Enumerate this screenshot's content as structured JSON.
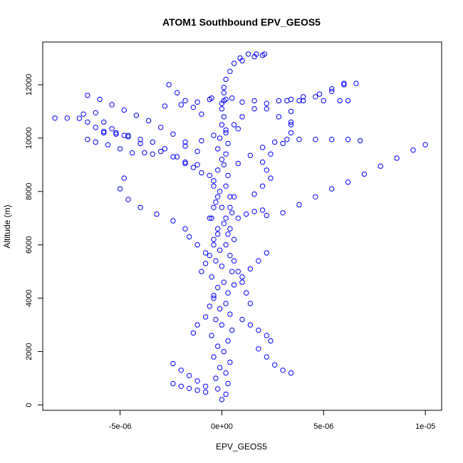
{
  "chart_data": {
    "type": "scatter",
    "title": "ATOM1 Southbound EPV_GEOS5",
    "xlabel": "EPV_GEOS5",
    "ylabel": "Altitude (m)",
    "xlim": [
      -8.8e-06,
      1.08e-05
    ],
    "ylim": [
      -200,
      13600
    ],
    "xticks": [
      -5e-06,
      0,
      5e-06,
      1e-05
    ],
    "xtick_labels": [
      "-5e-06",
      "0e+00",
      "5e-06",
      "1e-05"
    ],
    "yticks": [
      0,
      2000,
      4000,
      6000,
      8000,
      10000,
      12000
    ],
    "ytick_labels": [
      "0",
      "2000",
      "4000",
      "6000",
      "8000",
      "10000",
      "12000"
    ],
    "marker": "open-circle",
    "point_color": "#0000ff",
    "grid": false,
    "series": [
      {
        "values": [
          [
            -8.2e-06,
            10750
          ],
          [
            -7.6e-06,
            10750
          ],
          [
            -7e-06,
            10740
          ],
          [
            -6.6e-06,
            10600
          ],
          [
            -6.2e-06,
            10400
          ],
          [
            -5.8e-06,
            10250
          ],
          [
            -5.2e-06,
            10150
          ],
          [
            -4.6e-06,
            10050
          ],
          [
            -4e-06,
            9950
          ],
          [
            -3.4e-06,
            9850
          ],
          [
            -2.8e-06,
            9600
          ],
          [
            -2.2e-06,
            9300
          ],
          [
            -1.8e-06,
            9050
          ],
          [
            -1.4e-06,
            8900
          ],
          [
            -1e-06,
            8700
          ],
          [
            -6.8e-06,
            10900
          ],
          [
            -6.2e-06,
            10950
          ],
          [
            -5.8e-06,
            10600
          ],
          [
            -5.4e-06,
            10350
          ],
          [
            -4.8e-06,
            10100
          ],
          [
            -6.6e-06,
            9950
          ],
          [
            -6.2e-06,
            9850
          ],
          [
            -5.6e-06,
            9750
          ],
          [
            -5e-06,
            9600
          ],
          [
            -4.4e-06,
            9450
          ],
          [
            -3.8e-06,
            9450
          ],
          [
            -3e-06,
            9500
          ],
          [
            -2.4e-06,
            9300
          ],
          [
            -1.8e-06,
            9100
          ],
          [
            -1.2e-06,
            9000
          ],
          [
            -6.6e-06,
            11600
          ],
          [
            -6e-06,
            11450
          ],
          [
            -5.4e-06,
            11250
          ],
          [
            -4.8e-06,
            11050
          ],
          [
            -4.2e-06,
            10850
          ],
          [
            -3.6e-06,
            10650
          ],
          [
            -3e-06,
            10400
          ],
          [
            -2.4e-06,
            10150
          ],
          [
            -1.8e-06,
            9850
          ],
          [
            -1.2e-06,
            9500
          ],
          [
            -5.8e-06,
            10200
          ],
          [
            -5.2e-06,
            10200
          ],
          [
            -4.6e-06,
            10100
          ],
          [
            -4e-06,
            9800
          ],
          [
            -3.4e-06,
            9400
          ],
          [
            -2.6e-06,
            12000
          ],
          [
            -2.2e-06,
            11700
          ],
          [
            -1.8e-06,
            11400
          ],
          [
            -1.4e-06,
            11150
          ],
          [
            -1e-06,
            10900
          ],
          [
            -2.8e-06,
            11200
          ],
          [
            -2e-06,
            11250
          ],
          [
            -1.2e-06,
            11350
          ],
          [
            -6e-07,
            11450
          ],
          [
            2e-07,
            11450
          ],
          [
            1e-06,
            11350
          ],
          [
            1.6e-06,
            11400
          ],
          [
            2.2e-06,
            11100
          ],
          [
            2.8e-06,
            10800
          ],
          [
            3.4e-06,
            10500
          ],
          [
            2e-07,
            12200
          ],
          [
            4e-07,
            12500
          ],
          [
            6e-07,
            12800
          ],
          [
            9e-07,
            13000
          ],
          [
            1.3e-06,
            13150
          ],
          [
            1.7e-06,
            13150
          ],
          [
            2.1e-06,
            13150
          ],
          [
            2e-06,
            13100
          ],
          [
            1.6e-06,
            13050
          ],
          [
            1e-06,
            12900
          ],
          [
            6e-06,
            12050
          ],
          [
            5.4e-06,
            11850
          ],
          [
            4.8e-06,
            11650
          ],
          [
            4e-06,
            11550
          ],
          [
            3.4e-06,
            11450
          ],
          [
            2.8e-06,
            11400
          ],
          [
            2.2e-06,
            11300
          ],
          [
            1.6e-06,
            11100
          ],
          [
            1e-06,
            10800
          ],
          [
            6e-07,
            10500
          ],
          [
            6.6e-06,
            12050
          ],
          [
            6e-06,
            12000
          ],
          [
            5.4e-06,
            11750
          ],
          [
            4.6e-06,
            11550
          ],
          [
            3.8e-06,
            11400
          ],
          [
            3.2e-06,
            11400
          ],
          [
            4e-06,
            11400
          ],
          [
            5e-06,
            11400
          ],
          [
            5.8e-06,
            11400
          ],
          [
            6.2e-06,
            11400
          ],
          [
            1e-05,
            9750
          ],
          [
            9.4e-06,
            9550
          ],
          [
            8.6e-06,
            9250
          ],
          [
            7.8e-06,
            8950
          ],
          [
            7e-06,
            8650
          ],
          [
            6.2e-06,
            8350
          ],
          [
            5.4e-06,
            8100
          ],
          [
            4.6e-06,
            7800
          ],
          [
            3.8e-06,
            7500
          ],
          [
            3e-06,
            7200
          ],
          [
            6.8e-06,
            9900
          ],
          [
            6.2e-06,
            9950
          ],
          [
            5.4e-06,
            9950
          ],
          [
            4.6e-06,
            9950
          ],
          [
            3.8e-06,
            9950
          ],
          [
            3.2e-06,
            9950
          ],
          [
            2.6e-06,
            9850
          ],
          [
            2e-06,
            9650
          ],
          [
            1.4e-06,
            9350
          ],
          [
            8e-07,
            9050
          ],
          [
            3.4e-06,
            11000
          ],
          [
            3.4e-06,
            10600
          ],
          [
            3.4e-06,
            10200
          ],
          [
            3e-06,
            9800
          ],
          [
            2.4e-06,
            9400
          ],
          [
            2e-06,
            9100
          ],
          [
            2.2e-06,
            8800
          ],
          [
            2.4e-06,
            8500
          ],
          [
            2e-06,
            8200
          ],
          [
            1.6e-06,
            7900
          ],
          [
            -4.8e-06,
            8500
          ],
          [
            -5e-06,
            8100
          ],
          [
            -4.6e-06,
            7700
          ],
          [
            -4e-06,
            7400
          ],
          [
            -3.2e-06,
            7150
          ],
          [
            -2.4e-06,
            6900
          ],
          [
            -1.8e-06,
            6600
          ],
          [
            -1.6e-06,
            6300
          ],
          [
            -1.2e-06,
            6000
          ],
          [
            -8e-07,
            5700
          ],
          [
            -1.8e-06,
            9700
          ],
          [
            -1e-06,
            9900
          ],
          [
            -4e-07,
            10100
          ],
          [
            2e-07,
            10300
          ],
          [
            8e-07,
            10350
          ],
          [
            2.2e-06,
            7100
          ],
          [
            2e-06,
            7300
          ],
          [
            1.6e-06,
            7250
          ],
          [
            1.2e-06,
            7150
          ],
          [
            8e-07,
            7000
          ],
          [
            2.2e-06,
            5700
          ],
          [
            1.8e-06,
            5400
          ],
          [
            1.4e-06,
            5100
          ],
          [
            1e-06,
            4800
          ],
          [
            6e-07,
            4500
          ],
          [
            -2.4e-06,
            1550
          ],
          [
            -2e-06,
            1300
          ],
          [
            -1.6e-06,
            1100
          ],
          [
            -1.2e-06,
            900
          ],
          [
            -8e-07,
            700
          ],
          [
            -2.4e-06,
            800
          ],
          [
            -2e-06,
            700
          ],
          [
            -1.6e-06,
            620
          ],
          [
            -1.2e-06,
            550
          ],
          [
            -8e-07,
            480
          ],
          [
            3.4e-06,
            1200
          ],
          [
            3e-06,
            1300
          ],
          [
            2.6e-06,
            1500
          ],
          [
            2.2e-06,
            1800
          ],
          [
            1.8e-06,
            2100
          ],
          [
            2.4e-06,
            2400
          ],
          [
            2.2e-06,
            2600
          ],
          [
            1.8e-06,
            2800
          ],
          [
            1.4e-06,
            3000
          ],
          [
            1e-06,
            3200
          ],
          [
            -1.4e-06,
            2700
          ],
          [
            -1.2e-06,
            3000
          ],
          [
            -8e-07,
            3300
          ],
          [
            -6e-07,
            3700
          ],
          [
            -4e-07,
            4100
          ],
          [
            1.4e-06,
            3800
          ],
          [
            1.2e-06,
            4200
          ],
          [
            1e-06,
            4600
          ],
          [
            8e-07,
            5000
          ],
          [
            6e-07,
            5400
          ],
          [
            -1e-06,
            5000
          ],
          [
            -8e-07,
            5300
          ],
          [
            -6e-07,
            5600
          ],
          [
            -4e-07,
            6000
          ],
          [
            -2e-07,
            6400
          ],
          [
            6e-07,
            6200
          ],
          [
            4e-07,
            6600
          ],
          [
            2e-07,
            7000
          ],
          [
            4e-07,
            7400
          ],
          [
            6e-07,
            7800
          ],
          [
            -6e-07,
            7000
          ],
          [
            -4e-07,
            7400
          ],
          [
            -2e-07,
            7800
          ],
          [
            -4e-07,
            8200
          ],
          [
            -6e-07,
            8600
          ],
          [
            0.0,
            200
          ],
          [
            2e-07,
            400
          ],
          [
            -2e-07,
            600
          ],
          [
            3e-07,
            800
          ],
          [
            -3e-07,
            1000
          ],
          [
            2e-07,
            1200
          ],
          [
            -1e-07,
            1400
          ],
          [
            4e-07,
            1600
          ],
          [
            -4e-07,
            1800
          ],
          [
            1e-07,
            2000
          ],
          [
            -2e-07,
            2200
          ],
          [
            3e-07,
            2400
          ],
          [
            -5e-07,
            2600
          ],
          [
            5e-07,
            2800
          ],
          [
            0.0,
            3000
          ],
          [
            -3e-07,
            3200
          ],
          [
            4e-07,
            3400
          ],
          [
            -1e-07,
            3600
          ],
          [
            2e-07,
            3800
          ],
          [
            -4e-07,
            4000
          ],
          [
            3e-07,
            4200
          ],
          [
            -2e-07,
            4400
          ],
          [
            1e-07,
            4600
          ],
          [
            -5e-07,
            4800
          ],
          [
            5e-07,
            5000
          ],
          [
            0.0,
            5200
          ],
          [
            -3e-07,
            5400
          ],
          [
            4e-07,
            5600
          ],
          [
            -1e-07,
            5800
          ],
          [
            2e-07,
            6000
          ],
          [
            -4e-07,
            6200
          ],
          [
            3e-07,
            6400
          ],
          [
            -2e-07,
            6600
          ],
          [
            1e-07,
            6800
          ],
          [
            -5e-07,
            7000
          ],
          [
            5e-07,
            7200
          ],
          [
            0.0,
            7400
          ],
          [
            -3e-07,
            7600
          ],
          [
            4e-07,
            7800
          ],
          [
            -1e-07,
            8000
          ],
          [
            2e-07,
            8200
          ],
          [
            -4e-07,
            8400
          ],
          [
            3e-07,
            8600
          ],
          [
            -2e-07,
            8800
          ],
          [
            1e-07,
            9000
          ],
          [
            0.0,
            9200
          ],
          [
            2e-07,
            9400
          ],
          [
            -2e-07,
            9600
          ],
          [
            3e-07,
            9800
          ],
          [
            -1e-07,
            10000
          ],
          [
            2e-07,
            10200
          ],
          [
            0.0,
            10500
          ],
          [
            1e-07,
            10800
          ],
          [
            0.0,
            11100
          ],
          [
            1e-07,
            11400
          ],
          [
            1e-07,
            11700
          ],
          [
            1e-07,
            11900
          ],
          [
            -5e-07,
            11500
          ],
          [
            5e-07,
            11500
          ],
          [
            0.0,
            11300
          ]
        ]
      }
    ]
  }
}
